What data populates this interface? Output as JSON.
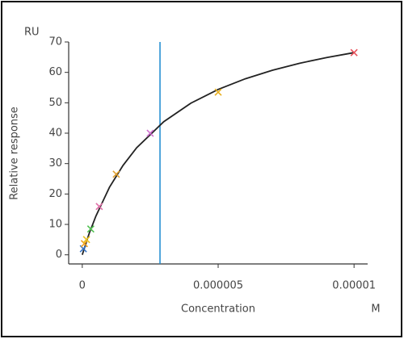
{
  "chart_data": {
    "type": "scatter",
    "y_unit": "RU",
    "ylabel": "Relative response",
    "xlabel": "Concentration",
    "x_unit": "M",
    "x": [
      3.906e-08,
      7.813e-08,
      1.563e-07,
      3.125e-07,
      6.25e-07,
      1.25e-06,
      2.5e-06,
      5e-06,
      1e-05
    ],
    "values": [
      2,
      3.7,
      5,
      8.5,
      15.9,
      26.5,
      40,
      53.5,
      66.5
    ],
    "colors": [
      "#3a78c8",
      "#f0a020",
      "#e8c020",
      "#50c050",
      "#e070a8",
      "#e0a030",
      "#d070d0",
      "#e8b020",
      "#e8505a"
    ],
    "fit": {
      "color": "#222222",
      "x": [
        0,
        2.5e-07,
        5e-07,
        1e-06,
        1.5e-06,
        2e-06,
        3e-06,
        4e-06,
        5e-06,
        6e-06,
        7e-06,
        8e-06,
        9e-06,
        1e-05
      ],
      "values": [
        0,
        6.9,
        12.7,
        22.2,
        29.4,
        35.2,
        43.8,
        49.9,
        54.4,
        57.9,
        60.7,
        63.0,
        64.9,
        66.5
      ]
    },
    "kd_line": {
      "x": 2.86e-06,
      "color": "#1a8ad0"
    },
    "xlim": [
      -5e-07,
      1.05e-05
    ],
    "ylim": [
      -3,
      70
    ],
    "xticks": [
      0,
      5e-06,
      1e-05
    ],
    "yticks": [
      0,
      10,
      20,
      30,
      40,
      50,
      60,
      70
    ]
  }
}
